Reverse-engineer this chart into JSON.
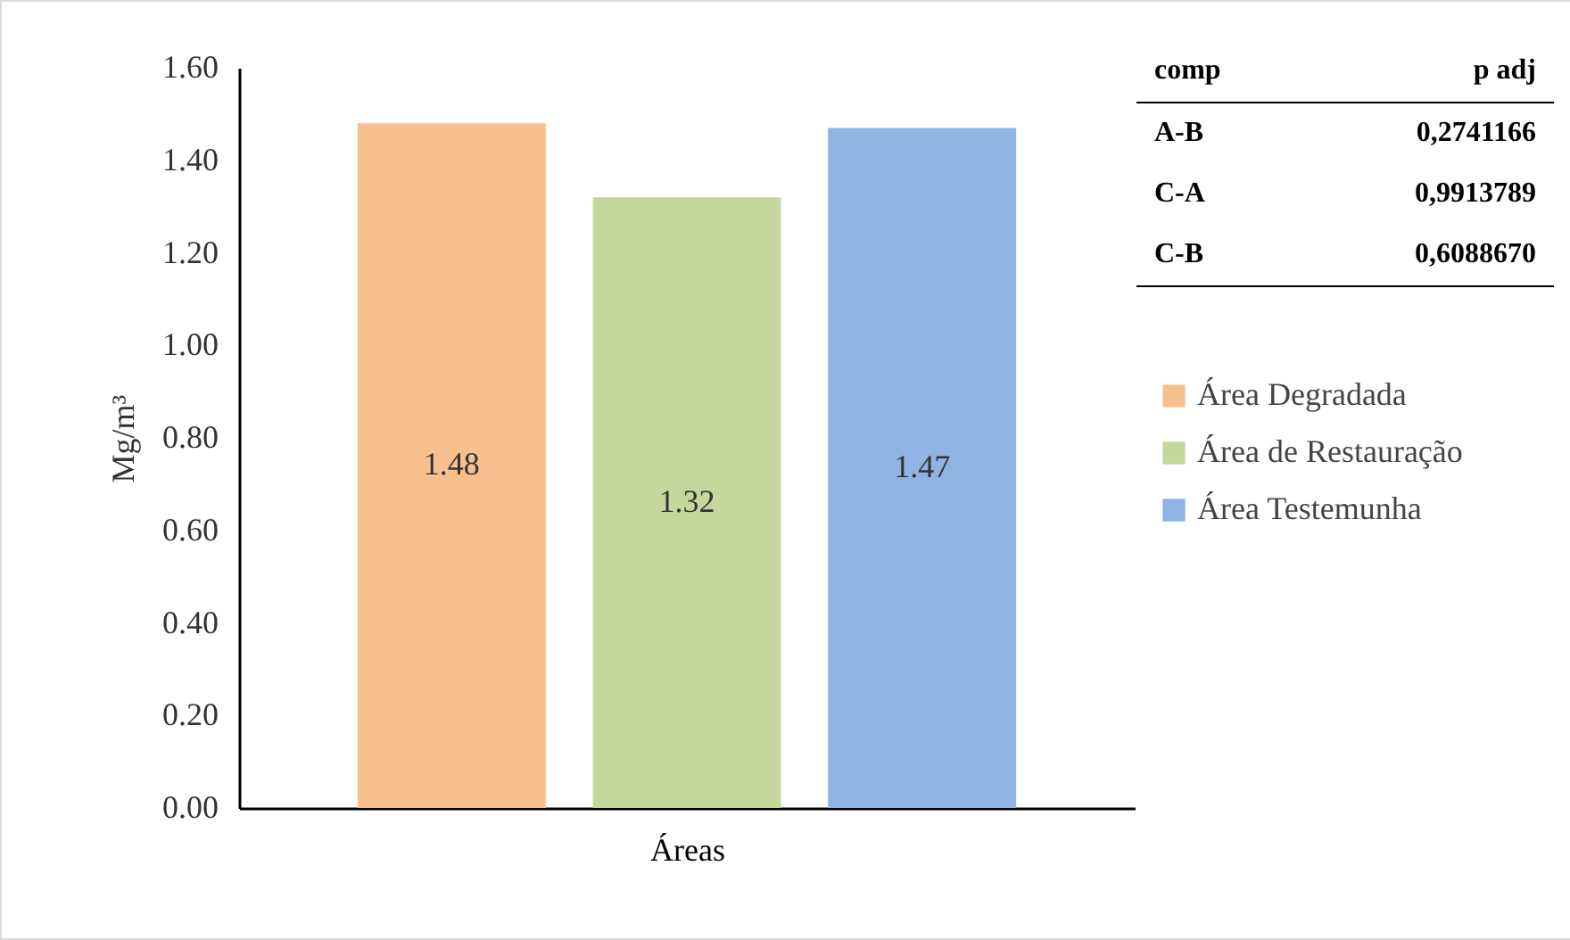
{
  "chart_data": {
    "type": "bar",
    "xlabel": "Áreas",
    "ylabel": "Mg/m³",
    "categories": [
      null
    ],
    "series": [
      {
        "name": "Área Degradada",
        "color": "#f7c08f",
        "values": [
          1.48
        ]
      },
      {
        "name": "Área de Restauração",
        "color": "#c5d79c",
        "values": [
          1.32
        ]
      },
      {
        "name": "Área Testemunha",
        "color": "#8fb3e2",
        "values": [
          1.47
        ]
      }
    ],
    "ylim": [
      0,
      1.6
    ],
    "yticks": [
      {
        "value": 0,
        "label": "0.00"
      },
      {
        "value": 0.2,
        "label": "0.20"
      },
      {
        "value": 0.4,
        "label": "0.40"
      },
      {
        "value": 0.6,
        "label": "0.60"
      },
      {
        "value": 0.8,
        "label": "0.80"
      },
      {
        "value": 1,
        "label": "1.00"
      },
      {
        "value": 1.2,
        "label": "1.20"
      },
      {
        "value": 1.4,
        "label": "1.40"
      },
      {
        "value": 1.6,
        "label": "1.60"
      }
    ],
    "data_labels": true,
    "legend": "right",
    "grid": false,
    "annotations": [
      "comp",
      "p adj",
      "A-B",
      "0,2741166",
      "C-A",
      "0,9913789",
      "C-B",
      "0,6088670"
    ]
  }
}
